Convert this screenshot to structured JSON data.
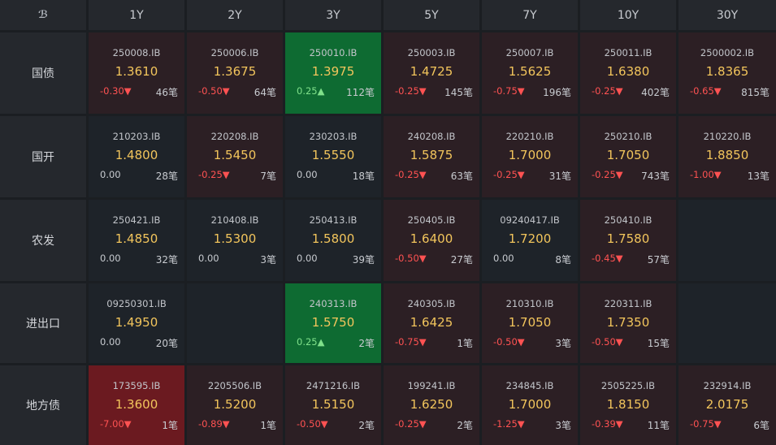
{
  "corner_logo": "ℬ",
  "tenors": [
    "1Y",
    "2Y",
    "3Y",
    "5Y",
    "7Y",
    "10Y",
    "30Y"
  ],
  "rows": [
    {
      "label": "国债",
      "cells": [
        {
          "code": "250008.IB",
          "yield": "1.3610",
          "change": "-0.30",
          "arrow": "▼",
          "count": "46笔",
          "tone": "red",
          "dir": "neg"
        },
        {
          "code": "250006.IB",
          "yield": "1.3675",
          "change": "-0.50",
          "arrow": "▼",
          "count": "64笔",
          "tone": "red",
          "dir": "neg"
        },
        {
          "code": "250010.IB",
          "yield": "1.3975",
          "change": "0.25",
          "arrow": "▲",
          "count": "112笔",
          "tone": "green",
          "dir": "pos"
        },
        {
          "code": "250003.IB",
          "yield": "1.4725",
          "change": "-0.25",
          "arrow": "▼",
          "count": "145笔",
          "tone": "red",
          "dir": "neg"
        },
        {
          "code": "250007.IB",
          "yield": "1.5625",
          "change": "-0.75",
          "arrow": "▼",
          "count": "196笔",
          "tone": "red",
          "dir": "neg"
        },
        {
          "code": "250011.IB",
          "yield": "1.6380",
          "change": "-0.25",
          "arrow": "▼",
          "count": "402笔",
          "tone": "red",
          "dir": "neg"
        },
        {
          "code": "2500002.IB",
          "yield": "1.8365",
          "change": "-0.65",
          "arrow": "▼",
          "count": "815笔",
          "tone": "red",
          "dir": "neg"
        }
      ]
    },
    {
      "label": "国开",
      "cells": [
        {
          "code": "210203.IB",
          "yield": "1.4800",
          "change": "0.00",
          "arrow": "",
          "count": "28笔",
          "tone": "neutral",
          "dir": "zero"
        },
        {
          "code": "220208.IB",
          "yield": "1.5450",
          "change": "-0.25",
          "arrow": "▼",
          "count": "7笔",
          "tone": "red",
          "dir": "neg"
        },
        {
          "code": "230203.IB",
          "yield": "1.5550",
          "change": "0.00",
          "arrow": "",
          "count": "18笔",
          "tone": "neutral",
          "dir": "zero"
        },
        {
          "code": "240208.IB",
          "yield": "1.5875",
          "change": "-0.25",
          "arrow": "▼",
          "count": "63笔",
          "tone": "red",
          "dir": "neg"
        },
        {
          "code": "220210.IB",
          "yield": "1.7000",
          "change": "-0.25",
          "arrow": "▼",
          "count": "31笔",
          "tone": "red",
          "dir": "neg"
        },
        {
          "code": "250210.IB",
          "yield": "1.7050",
          "change": "-0.25",
          "arrow": "▼",
          "count": "743笔",
          "tone": "red",
          "dir": "neg"
        },
        {
          "code": "210220.IB",
          "yield": "1.8850",
          "change": "-1.00",
          "arrow": "▼",
          "count": "13笔",
          "tone": "red",
          "dir": "neg"
        }
      ]
    },
    {
      "label": "农发",
      "cells": [
        {
          "code": "250421.IB",
          "yield": "1.4850",
          "change": "0.00",
          "arrow": "",
          "count": "32笔",
          "tone": "neutral",
          "dir": "zero"
        },
        {
          "code": "210408.IB",
          "yield": "1.5300",
          "change": "0.00",
          "arrow": "",
          "count": "3笔",
          "tone": "neutral",
          "dir": "zero"
        },
        {
          "code": "250413.IB",
          "yield": "1.5800",
          "change": "0.00",
          "arrow": "",
          "count": "39笔",
          "tone": "neutral",
          "dir": "zero"
        },
        {
          "code": "250405.IB",
          "yield": "1.6400",
          "change": "-0.50",
          "arrow": "▼",
          "count": "27笔",
          "tone": "red",
          "dir": "neg"
        },
        {
          "code": "09240417.IB",
          "yield": "1.7200",
          "change": "0.00",
          "arrow": "",
          "count": "8笔",
          "tone": "neutral",
          "dir": "zero"
        },
        {
          "code": "250410.IB",
          "yield": "1.7580",
          "change": "-0.45",
          "arrow": "▼",
          "count": "57笔",
          "tone": "red",
          "dir": "neg"
        },
        null
      ]
    },
    {
      "label": "进出口",
      "cells": [
        {
          "code": "09250301.IB",
          "yield": "1.4950",
          "change": "0.00",
          "arrow": "",
          "count": "20笔",
          "tone": "neutral",
          "dir": "zero"
        },
        null,
        {
          "code": "240313.IB",
          "yield": "1.5750",
          "change": "0.25",
          "arrow": "▲",
          "count": "2笔",
          "tone": "green",
          "dir": "pos"
        },
        {
          "code": "240305.IB",
          "yield": "1.6425",
          "change": "-0.75",
          "arrow": "▼",
          "count": "1笔",
          "tone": "red",
          "dir": "neg"
        },
        {
          "code": "210310.IB",
          "yield": "1.7050",
          "change": "-0.50",
          "arrow": "▼",
          "count": "3笔",
          "tone": "red",
          "dir": "neg"
        },
        {
          "code": "220311.IB",
          "yield": "1.7350",
          "change": "-0.50",
          "arrow": "▼",
          "count": "15笔",
          "tone": "red",
          "dir": "neg"
        },
        null
      ]
    },
    {
      "label": "地方债",
      "cells": [
        {
          "code": "173595.IB",
          "yield": "1.3600",
          "change": "-7.00",
          "arrow": "▼",
          "count": "1笔",
          "tone": "deepred",
          "dir": "neg"
        },
        {
          "code": "2205506.IB",
          "yield": "1.5200",
          "change": "-0.89",
          "arrow": "▼",
          "count": "1笔",
          "tone": "red",
          "dir": "neg"
        },
        {
          "code": "2471216.IB",
          "yield": "1.5150",
          "change": "-0.50",
          "arrow": "▼",
          "count": "2笔",
          "tone": "red",
          "dir": "neg"
        },
        {
          "code": "199241.IB",
          "yield": "1.6250",
          "change": "-0.25",
          "arrow": "▼",
          "count": "2笔",
          "tone": "red",
          "dir": "neg"
        },
        {
          "code": "234845.IB",
          "yield": "1.7000",
          "change": "-1.25",
          "arrow": "▼",
          "count": "3笔",
          "tone": "red",
          "dir": "neg"
        },
        {
          "code": "2505225.IB",
          "yield": "1.8150",
          "change": "-0.39",
          "arrow": "▼",
          "count": "11笔",
          "tone": "red",
          "dir": "neg"
        },
        {
          "code": "232914.IB",
          "yield": "2.0175",
          "change": "-0.75",
          "arrow": "▼",
          "count": "6笔",
          "tone": "red",
          "dir": "neg"
        }
      ]
    }
  ]
}
